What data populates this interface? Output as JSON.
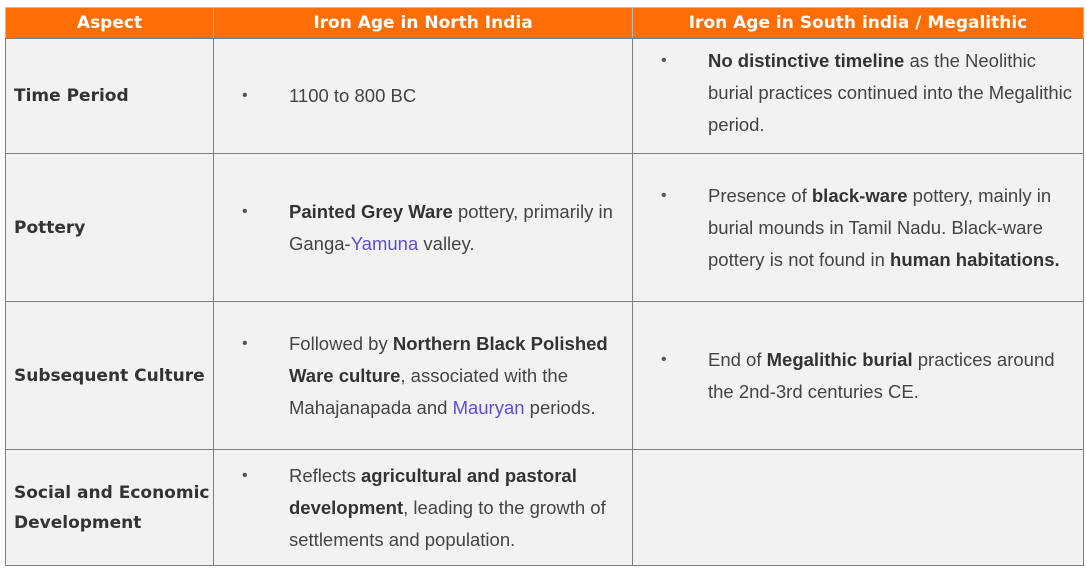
{
  "table": {
    "headers": [
      "Aspect",
      "Iron Age in North India",
      "Iron Age in South india / Megalithic"
    ],
    "rows": [
      {
        "aspect": "Time Period",
        "north": {
          "text": "1100 to 800 BC"
        },
        "south": {
          "b1": "No distinctive timeline",
          "t1": " as the Neolithic burial practices continued into the Megalithic period."
        }
      },
      {
        "aspect": "Pottery",
        "north": {
          "b1": "Painted Grey Ware",
          "t1": " pottery, primarily in Ganga-",
          "link1": "Yamuna",
          "t2": " valley."
        },
        "south": {
          "t0": "Presence of ",
          "b1": "black-ware",
          "t1": " pottery, mainly in burial mounds in Tamil Nadu. Black-ware pottery is not found in ",
          "b2": "human habitations."
        }
      },
      {
        "aspect": "Subsequent Culture",
        "north": {
          "t0": "Followed by ",
          "b1": "Northern Black Polished Ware culture",
          "t1": ", associated with the Mahajanapada and ",
          "link1": "Mauryan",
          "t2": " periods."
        },
        "south": {
          "t0": "End of ",
          "b1": "Megalithic burial",
          "t1": " practices around the 2nd-3rd centuries CE."
        }
      },
      {
        "aspect": "Social and Economic Development",
        "north": {
          "t0": "Reflects ",
          "b1": "agricultural and pastoral development",
          "t1": ", leading to the growth of  settlements and population."
        },
        "south": {}
      }
    ]
  },
  "colors": {
    "header_bg": "#ff6d05",
    "header_text": "#ffffff",
    "cell_bg": "#f2f2f2",
    "link": "#5b4fd6"
  },
  "bullet_char": "•"
}
